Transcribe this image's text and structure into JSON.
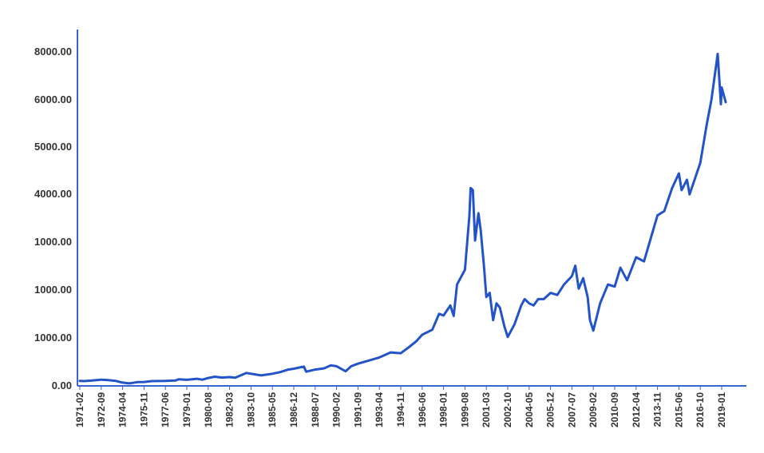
{
  "chart_data": {
    "type": "line",
    "title": "",
    "xlabel": "",
    "ylabel": "",
    "grid": false,
    "legend": "none",
    "colors": {
      "line": "#2354c7",
      "axis": "#3b63d1",
      "text": "#333333"
    },
    "y_tick_labels": [
      "8000.00",
      "6000.00",
      "5000.00",
      "4000.00",
      "1000.00",
      "1000.00",
      "1000.00",
      "0.00"
    ],
    "x_tick_labels": [
      "1971-02",
      "1972-09",
      "1974-04",
      "1975-11",
      "1977-06",
      "1979-01",
      "1980-08",
      "1982-03",
      "1983-10",
      "1985-05",
      "1986-12",
      "1988-07",
      "1990-02",
      "1991-09",
      "1993-04",
      "1994-11",
      "1996-06",
      "1998-01",
      "1999-08",
      "2001-03",
      "2002-10",
      "2004-05",
      "2005-12",
      "2007-07",
      "2009-02",
      "2010-09",
      "2012-04",
      "2013-11",
      "2015-06",
      "2016-10",
      "2019-01"
    ],
    "series": [
      {
        "values": [
          {
            "x": "1971-02",
            "y": 100
          },
          {
            "x": "1971-06",
            "y": 95
          },
          {
            "x": "1972-01",
            "y": 110
          },
          {
            "x": "1972-09",
            "y": 130
          },
          {
            "x": "1973-03",
            "y": 120
          },
          {
            "x": "1973-10",
            "y": 100
          },
          {
            "x": "1974-04",
            "y": 60
          },
          {
            "x": "1974-10",
            "y": 40
          },
          {
            "x": "1975-05",
            "y": 70
          },
          {
            "x": "1975-11",
            "y": 75
          },
          {
            "x": "1976-06",
            "y": 95
          },
          {
            "x": "1977-06",
            "y": 100
          },
          {
            "x": "1978-03",
            "y": 110
          },
          {
            "x": "1978-06",
            "y": 140
          },
          {
            "x": "1979-01",
            "y": 125
          },
          {
            "x": "1979-10",
            "y": 150
          },
          {
            "x": "1980-03",
            "y": 130
          },
          {
            "x": "1980-08",
            "y": 170
          },
          {
            "x": "1981-02",
            "y": 200
          },
          {
            "x": "1981-08",
            "y": 180
          },
          {
            "x": "1982-03",
            "y": 190
          },
          {
            "x": "1982-08",
            "y": 175
          },
          {
            "x": "1983-06",
            "y": 290
          },
          {
            "x": "1983-10",
            "y": 270
          },
          {
            "x": "1984-07",
            "y": 230
          },
          {
            "x": "1985-05",
            "y": 270
          },
          {
            "x": "1985-12",
            "y": 310
          },
          {
            "x": "1986-07",
            "y": 370
          },
          {
            "x": "1986-12",
            "y": 390
          },
          {
            "x": "1987-05",
            "y": 420
          },
          {
            "x": "1987-09",
            "y": 440
          },
          {
            "x": "1987-11",
            "y": 320
          },
          {
            "x": "1988-07",
            "y": 370
          },
          {
            "x": "1989-03",
            "y": 400
          },
          {
            "x": "1989-09",
            "y": 470
          },
          {
            "x": "1990-02",
            "y": 450
          },
          {
            "x": "1990-10",
            "y": 330
          },
          {
            "x": "1991-03",
            "y": 450
          },
          {
            "x": "1991-09",
            "y": 510
          },
          {
            "x": "1992-06",
            "y": 580
          },
          {
            "x": "1993-04",
            "y": 660
          },
          {
            "x": "1994-02",
            "y": 780
          },
          {
            "x": "1994-11",
            "y": 760
          },
          {
            "x": "1995-06",
            "y": 900
          },
          {
            "x": "1996-01",
            "y": 1050
          },
          {
            "x": "1996-06",
            "y": 1200
          },
          {
            "x": "1997-03",
            "y": 1320
          },
          {
            "x": "1997-09",
            "y": 1700
          },
          {
            "x": "1998-01",
            "y": 1660
          },
          {
            "x": "1998-07",
            "y": 1900
          },
          {
            "x": "1998-10",
            "y": 1650
          },
          {
            "x": "1999-01",
            "y": 2400
          },
          {
            "x": "1999-08",
            "y": 2750
          },
          {
            "x": "1999-12",
            "y": 4050
          },
          {
            "x": "2000-01",
            "y": 4700
          },
          {
            "x": "2000-03",
            "y": 4650
          },
          {
            "x": "2000-05",
            "y": 3450
          },
          {
            "x": "2000-08",
            "y": 4100
          },
          {
            "x": "2000-10",
            "y": 3700
          },
          {
            "x": "2001-01",
            "y": 2800
          },
          {
            "x": "2001-03",
            "y": 2100
          },
          {
            "x": "2001-06",
            "y": 2200
          },
          {
            "x": "2001-09",
            "y": 1550
          },
          {
            "x": "2001-12",
            "y": 1950
          },
          {
            "x": "2002-03",
            "y": 1850
          },
          {
            "x": "2002-07",
            "y": 1400
          },
          {
            "x": "2002-10",
            "y": 1150
          },
          {
            "x": "2003-04",
            "y": 1450
          },
          {
            "x": "2003-10",
            "y": 1900
          },
          {
            "x": "2004-01",
            "y": 2050
          },
          {
            "x": "2004-05",
            "y": 1950
          },
          {
            "x": "2004-09",
            "y": 1900
          },
          {
            "x": "2005-01",
            "y": 2050
          },
          {
            "x": "2005-06",
            "y": 2050
          },
          {
            "x": "2005-12",
            "y": 2200
          },
          {
            "x": "2006-06",
            "y": 2150
          },
          {
            "x": "2006-12",
            "y": 2400
          },
          {
            "x": "2007-07",
            "y": 2600
          },
          {
            "x": "2007-10",
            "y": 2850
          },
          {
            "x": "2008-01",
            "y": 2300
          },
          {
            "x": "2008-05",
            "y": 2550
          },
          {
            "x": "2008-09",
            "y": 2100
          },
          {
            "x": "2008-11",
            "y": 1550
          },
          {
            "x": "2009-02",
            "y": 1300
          },
          {
            "x": "2009-08",
            "y": 1950
          },
          {
            "x": "2010-03",
            "y": 2400
          },
          {
            "x": "2010-09",
            "y": 2350
          },
          {
            "x": "2011-02",
            "y": 2800
          },
          {
            "x": "2011-08",
            "y": 2500
          },
          {
            "x": "2012-04",
            "y": 3050
          },
          {
            "x": "2012-11",
            "y": 2950
          },
          {
            "x": "2013-05",
            "y": 3500
          },
          {
            "x": "2013-11",
            "y": 4050
          },
          {
            "x": "2014-05",
            "y": 4150
          },
          {
            "x": "2014-12",
            "y": 4700
          },
          {
            "x": "2015-06",
            "y": 5050
          },
          {
            "x": "2015-08",
            "y": 4650
          },
          {
            "x": "2015-12",
            "y": 4900
          },
          {
            "x": "2016-02",
            "y": 4550
          },
          {
            "x": "2016-10",
            "y": 5300
          },
          {
            "x": "2017-06",
            "y": 6200
          },
          {
            "x": "2017-12",
            "y": 6800
          },
          {
            "x": "2018-08",
            "y": 7900
          },
          {
            "x": "2018-12",
            "y": 6700
          },
          {
            "x": "2019-01",
            "y": 7100
          },
          {
            "x": "2019-06",
            "y": 6750
          }
        ]
      }
    ]
  }
}
